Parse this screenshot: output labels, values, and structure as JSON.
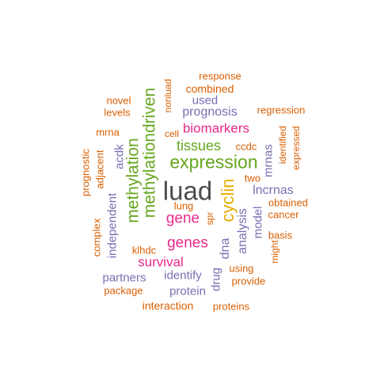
{
  "colors": {
    "gray": "#4d4d4d",
    "orange": "#d95f02",
    "purple": "#7570b3",
    "magenta": "#e7298a",
    "green": "#66a61e",
    "gold": "#e6ab02"
  },
  "words": [
    {
      "text": "luad",
      "color": "gray",
      "weight": 5
    },
    {
      "text": "expression",
      "color": "green",
      "weight": 4
    },
    {
      "text": "methylationdriven",
      "color": "green",
      "weight": 4
    },
    {
      "text": "methylation",
      "color": "green",
      "weight": 4
    },
    {
      "text": "cyclin",
      "color": "gold",
      "weight": 3
    },
    {
      "text": "tissues",
      "color": "green",
      "weight": 3
    },
    {
      "text": "genes",
      "color": "magenta",
      "weight": 3
    },
    {
      "text": "gene",
      "color": "magenta",
      "weight": 3
    },
    {
      "text": "biomarkers",
      "color": "magenta",
      "weight": 3
    },
    {
      "text": "survival",
      "color": "magenta",
      "weight": 3
    },
    {
      "text": "prognosis",
      "color": "purple",
      "weight": 2
    },
    {
      "text": "lncrnas",
      "color": "purple",
      "weight": 2
    },
    {
      "text": "analysis",
      "color": "purple",
      "weight": 2
    },
    {
      "text": "dna",
      "color": "purple",
      "weight": 2
    },
    {
      "text": "acdk",
      "color": "purple",
      "weight": 2
    },
    {
      "text": "independent",
      "color": "purple",
      "weight": 2
    },
    {
      "text": "mrnas",
      "color": "purple",
      "weight": 2
    },
    {
      "text": "model",
      "color": "purple",
      "weight": 2
    },
    {
      "text": "drug",
      "color": "purple",
      "weight": 2
    },
    {
      "text": "identify",
      "color": "purple",
      "weight": 2
    },
    {
      "text": "partners",
      "color": "purple",
      "weight": 2
    },
    {
      "text": "used",
      "color": "purple",
      "weight": 2
    },
    {
      "text": "protein",
      "color": "purple",
      "weight": 2
    },
    {
      "text": "response",
      "color": "orange",
      "weight": 1
    },
    {
      "text": "combined",
      "color": "orange",
      "weight": 1
    },
    {
      "text": "novel",
      "color": "orange",
      "weight": 1
    },
    {
      "text": "levels",
      "color": "orange",
      "weight": 1
    },
    {
      "text": "nonluad",
      "color": "orange",
      "weight": 1
    },
    {
      "text": "regression",
      "color": "orange",
      "weight": 1
    },
    {
      "text": "identified",
      "color": "orange",
      "weight": 1
    },
    {
      "text": "expressed",
      "color": "orange",
      "weight": 1
    },
    {
      "text": "mrna",
      "color": "orange",
      "weight": 1
    },
    {
      "text": "cell",
      "color": "orange",
      "weight": 1
    },
    {
      "text": "ccdc",
      "color": "orange",
      "weight": 1
    },
    {
      "text": "prognostic",
      "color": "orange",
      "weight": 1
    },
    {
      "text": "adjacent",
      "color": "orange",
      "weight": 1
    },
    {
      "text": "two",
      "color": "orange",
      "weight": 1
    },
    {
      "text": "lung",
      "color": "orange",
      "weight": 1
    },
    {
      "text": "obtained",
      "color": "orange",
      "weight": 1
    },
    {
      "text": "cancer",
      "color": "orange",
      "weight": 1
    },
    {
      "text": "spr",
      "color": "orange",
      "weight": 1
    },
    {
      "text": "complex",
      "color": "orange",
      "weight": 1
    },
    {
      "text": "basis",
      "color": "orange",
      "weight": 1
    },
    {
      "text": "might",
      "color": "orange",
      "weight": 1
    },
    {
      "text": "klhdc",
      "color": "orange",
      "weight": 1
    },
    {
      "text": "using",
      "color": "orange",
      "weight": 1
    },
    {
      "text": "provide",
      "color": "orange",
      "weight": 1
    },
    {
      "text": "package",
      "color": "orange",
      "weight": 1
    },
    {
      "text": "interaction",
      "color": "orange",
      "weight": 1
    },
    {
      "text": "proteins",
      "color": "orange",
      "weight": 1
    }
  ]
}
